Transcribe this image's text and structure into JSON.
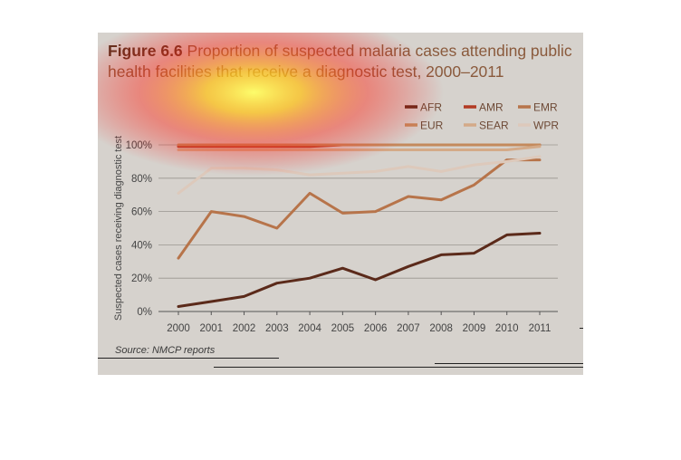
{
  "figure": {
    "number": "Figure 6.6",
    "title": "Proportion of suspected malaria cases attending public health facilities that receive a diagnostic test, 2000–2011",
    "source": "Source: NMCP reports"
  },
  "chart_data": {
    "type": "line",
    "title": "Proportion of suspected malaria cases attending public health facilities that receive a diagnostic test, 2000–2011",
    "xlabel": "",
    "ylabel": "Suspected cases receiving diagnostic test",
    "x": [
      "2000",
      "2001",
      "2002",
      "2003",
      "2004",
      "2005",
      "2006",
      "2007",
      "2008",
      "2009",
      "2010",
      "2011"
    ],
    "ylim": [
      0,
      100
    ],
    "yticks": [
      "0%",
      "20%",
      "40%",
      "60%",
      "80%",
      "100%"
    ],
    "ytick_values": [
      0,
      20,
      40,
      60,
      80,
      100
    ],
    "grid": true,
    "legend_position": "top-right",
    "series": [
      {
        "name": "AFR",
        "color": "#5b2a1a",
        "values": [
          3,
          6,
          9,
          17,
          20,
          26,
          19,
          27,
          34,
          35,
          46,
          47
        ]
      },
      {
        "name": "AMR",
        "color": "#b23a22",
        "values": [
          99,
          99,
          99,
          99,
          99,
          100,
          100,
          100,
          100,
          100,
          100,
          100
        ]
      },
      {
        "name": "EMR",
        "color": "#b7744a",
        "values": [
          32,
          60,
          57,
          50,
          71,
          59,
          60,
          69,
          67,
          76,
          91,
          91
        ]
      },
      {
        "name": "EUR",
        "color": "#c48a5c",
        "values": [
          100,
          100,
          100,
          100,
          100,
          100,
          100,
          100,
          100,
          100,
          100,
          100
        ]
      },
      {
        "name": "SEAR",
        "color": "#d4aa88",
        "values": [
          97,
          97,
          97,
          97,
          97,
          97,
          97,
          97,
          97,
          97,
          97,
          99
        ]
      },
      {
        "name": "WPR",
        "color": "#ddc9bb",
        "values": [
          71,
          86,
          86,
          85,
          82,
          83,
          84,
          87,
          84,
          88,
          90,
          93
        ]
      }
    ]
  }
}
